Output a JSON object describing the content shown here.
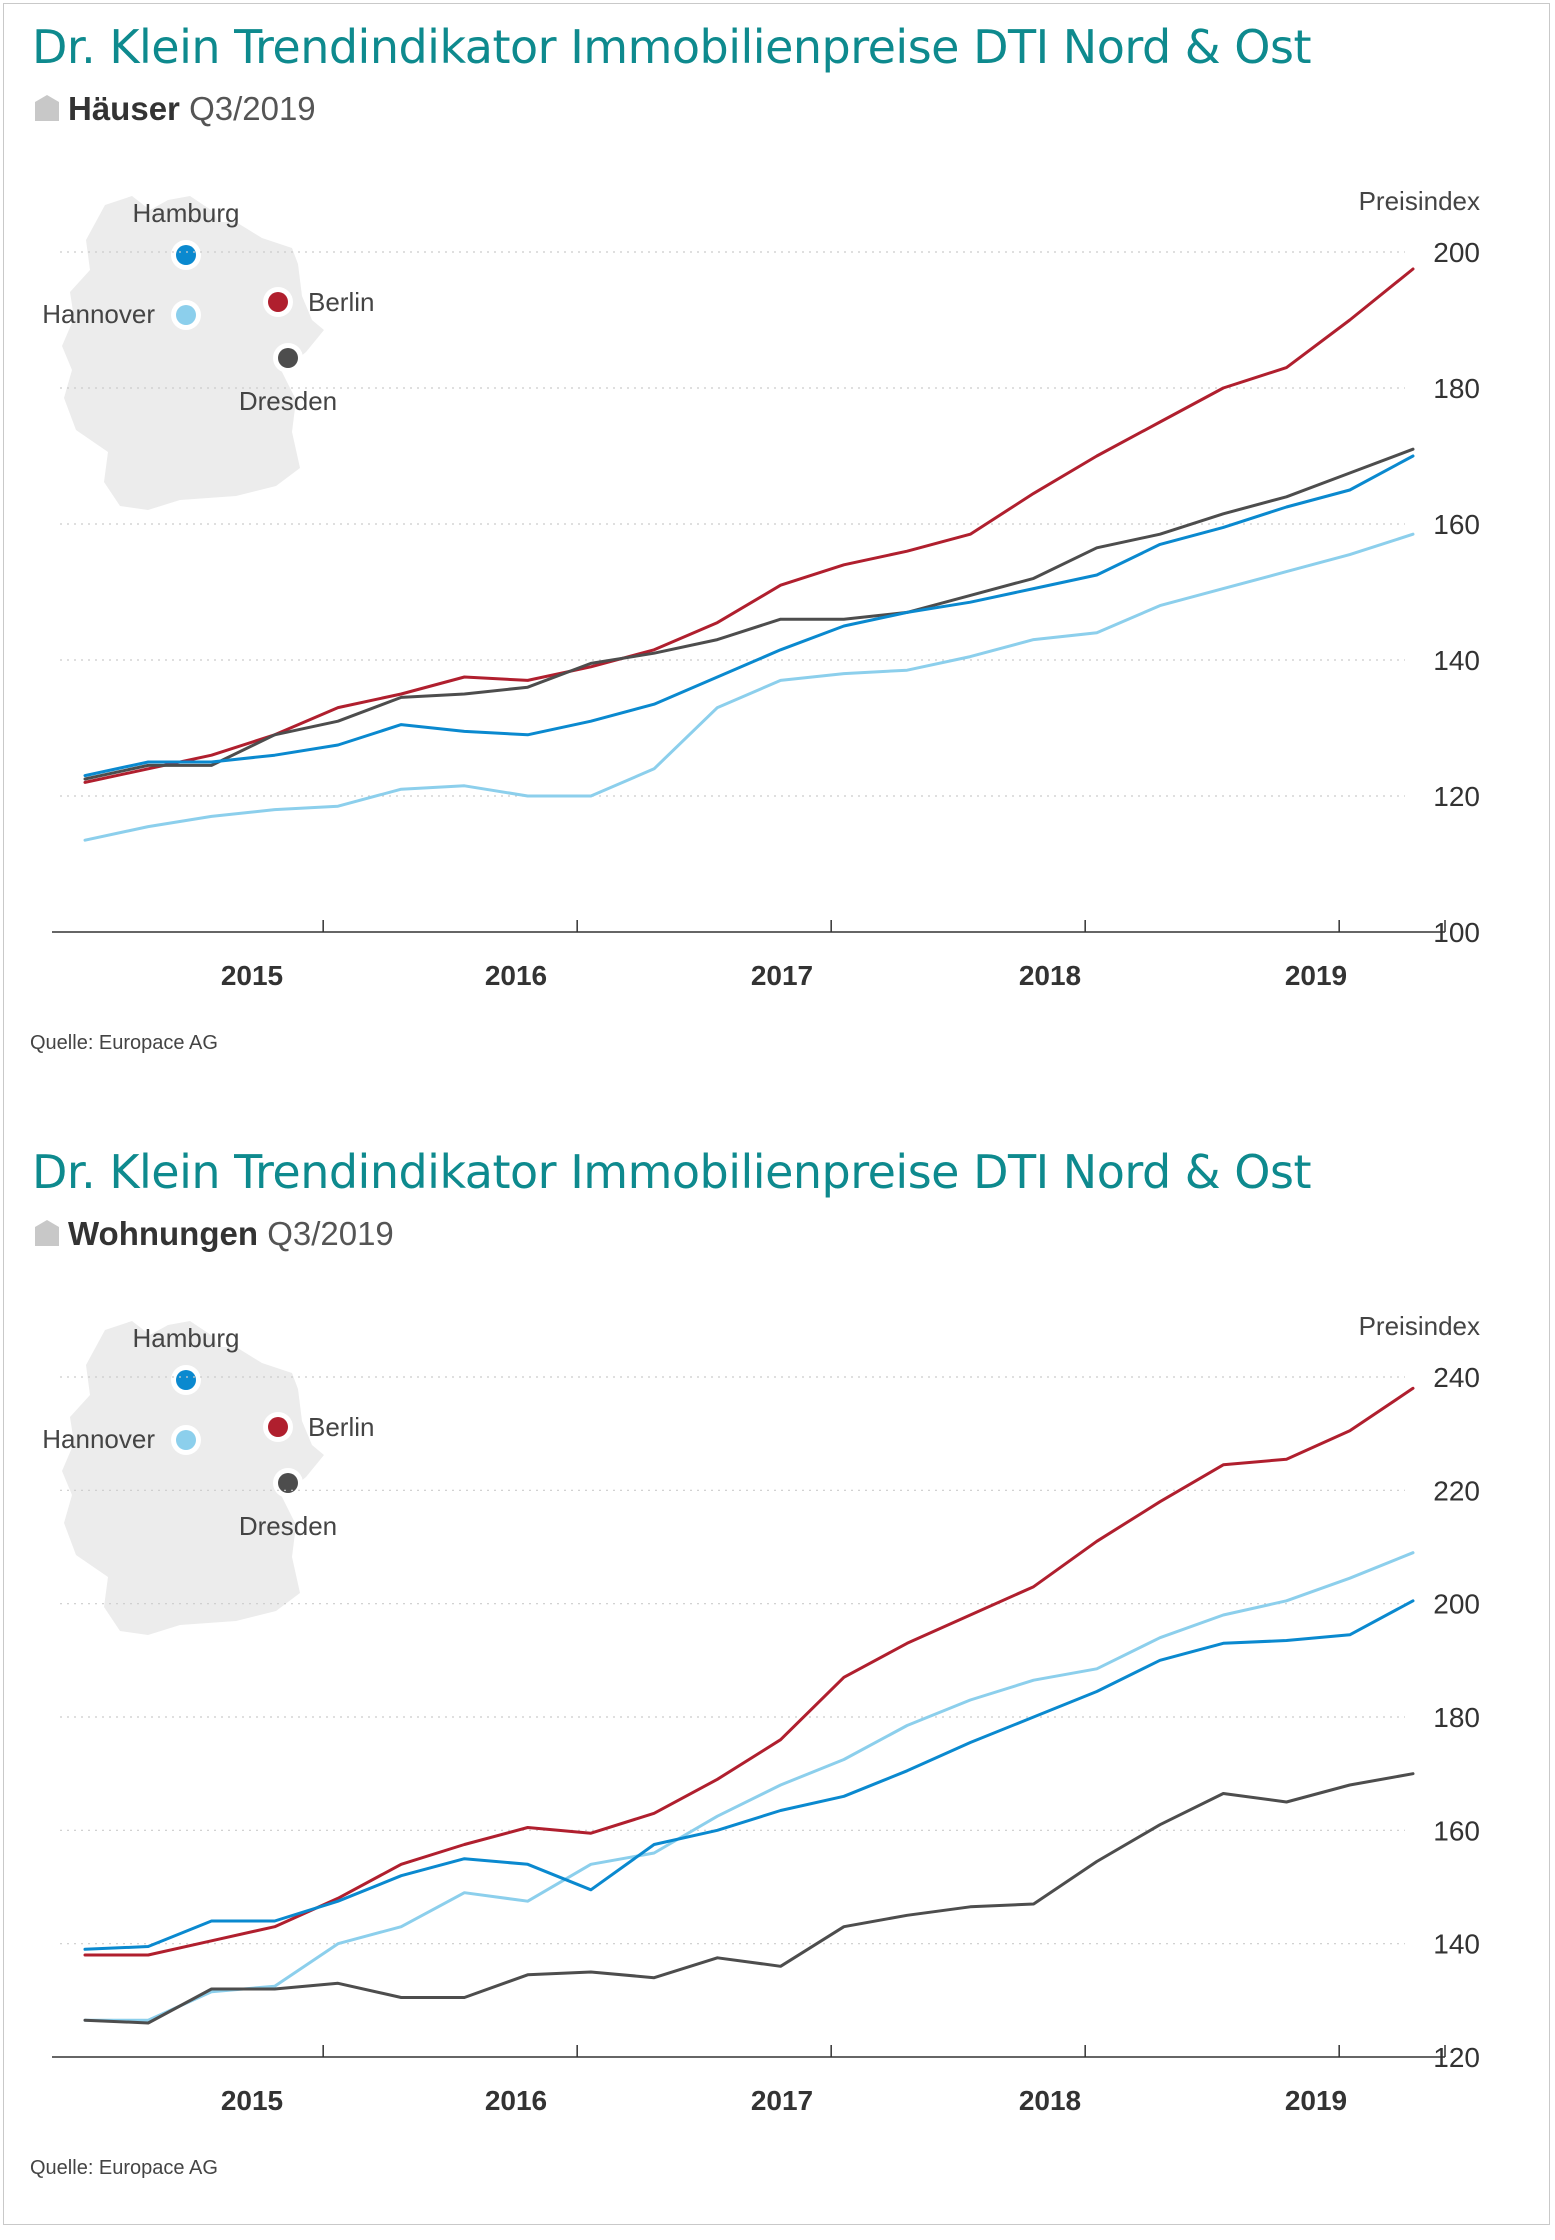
{
  "panels": [
    {
      "title": "Dr. Klein Trendindikator Immobilienpreise DTI Nord & Ost",
      "category": "Häuser",
      "period": "Q3/2019",
      "source": "Quelle: Europace AG",
      "map_labels": [
        "Hamburg",
        "Hannover",
        "Berlin",
        "Dresden"
      ],
      "chart_data": {
        "type": "line",
        "title": "Dr. Klein Trendindikator Immobilienpreise DTI Nord & Ost – Häuser Q3/2019",
        "ylabel": "Preisindex",
        "ylim": [
          100,
          200
        ],
        "yticks": [
          100,
          120,
          140,
          160,
          180,
          200
        ],
        "xticks": [
          "2015",
          "2016",
          "2017",
          "2018",
          "2019"
        ],
        "x_range": [
          "2014-Q2",
          "2019-Q3"
        ],
        "x": [
          "2014-05",
          "2014-08",
          "2014-11",
          "2015-02",
          "2015-05",
          "2015-08",
          "2015-11",
          "2016-02",
          "2016-05",
          "2016-08",
          "2016-11",
          "2017-02",
          "2017-05",
          "2017-08",
          "2017-11",
          "2018-02",
          "2018-05",
          "2018-08",
          "2018-11",
          "2019-02",
          "2019-05",
          "2019-08"
        ],
        "grid": "horizontal dotted",
        "series": [
          {
            "name": "Berlin",
            "color": "#b01f2e",
            "values": [
              122,
              124,
              126,
              129,
              133,
              135,
              137.5,
              137,
              139,
              141.5,
              145.5,
              151,
              154,
              156,
              158.5,
              164.5,
              170,
              175,
              180,
              183,
              190,
              197.5
            ]
          },
          {
            "name": "Dresden",
            "color": "#4d4d4d",
            "values": [
              122.5,
              124.5,
              124.5,
              129,
              131,
              134.5,
              135,
              136,
              139.5,
              141,
              143,
              146,
              146,
              147,
              149.5,
              152,
              156.5,
              158.5,
              161.5,
              164,
              167.5,
              171
            ]
          },
          {
            "name": "Hamburg",
            "color": "#0a89cf",
            "values": [
              123,
              125,
              125,
              126,
              127.5,
              130.5,
              129.5,
              129,
              131,
              133.5,
              137.5,
              141.5,
              145,
              147,
              148.5,
              150.5,
              152.5,
              157,
              159.5,
              162.5,
              165,
              170
            ]
          },
          {
            "name": "Hannover",
            "color": "#8ccfec",
            "values": [
              113.5,
              115.5,
              117,
              118,
              118.5,
              121,
              121.5,
              120,
              120,
              124,
              133,
              137,
              138,
              138.5,
              140.5,
              143,
              144,
              148,
              150.5,
              153,
              155.5,
              158.5
            ]
          }
        ]
      }
    },
    {
      "title": "Dr. Klein Trendindikator Immobilienpreise DTI Nord & Ost",
      "category": "Wohnungen",
      "period": "Q3/2019",
      "source": "Quelle: Europace AG",
      "map_labels": [
        "Hamburg",
        "Hannover",
        "Berlin",
        "Dresden"
      ],
      "chart_data": {
        "type": "line",
        "title": "Dr. Klein Trendindikator Immobilienpreise DTI Nord & Ost – Wohnungen Q3/2019",
        "ylabel": "Preisindex",
        "ylim": [
          120,
          240
        ],
        "yticks": [
          120,
          140,
          160,
          180,
          200,
          220,
          240
        ],
        "xticks": [
          "2015",
          "2016",
          "2017",
          "2018",
          "2019"
        ],
        "x_range": [
          "2014-Q2",
          "2019-Q3"
        ],
        "x": [
          "2014-05",
          "2014-08",
          "2014-11",
          "2015-02",
          "2015-05",
          "2015-08",
          "2015-11",
          "2016-02",
          "2016-05",
          "2016-08",
          "2016-11",
          "2017-02",
          "2017-05",
          "2017-08",
          "2017-11",
          "2018-02",
          "2018-05",
          "2018-08",
          "2018-11",
          "2019-02",
          "2019-05",
          "2019-08"
        ],
        "grid": "horizontal dotted",
        "series": [
          {
            "name": "Berlin",
            "color": "#b01f2e",
            "values": [
              138,
              138,
              140.5,
              143,
              148,
              154,
              157.5,
              160.5,
              159.5,
              163,
              169,
              176,
              187,
              193,
              198,
              203,
              211,
              218,
              224.5,
              225.5,
              230.5,
              238
            ]
          },
          {
            "name": "Hannover",
            "color": "#8ccfec",
            "values": [
              126.5,
              126.5,
              131.5,
              132.5,
              140,
              143,
              149,
              147.5,
              154,
              156,
              162.5,
              168,
              172.5,
              178.5,
              183,
              186.5,
              188.5,
              194,
              198,
              200.5,
              204.5,
              209
            ]
          },
          {
            "name": "Hamburg",
            "color": "#0a89cf",
            "values": [
              139,
              139.5,
              144,
              144,
              147.5,
              152,
              155,
              154,
              149.5,
              157.5,
              160,
              163.5,
              166,
              170.5,
              175.5,
              180,
              184.5,
              190,
              193,
              193.5,
              194.5,
              200.5
            ]
          },
          {
            "name": "Dresden",
            "color": "#4d4d4d",
            "values": [
              126.5,
              126,
              132,
              132,
              133,
              130.5,
              130.5,
              134.5,
              135,
              134,
              137.5,
              136,
              143,
              145,
              146.5,
              147,
              154.5,
              161,
              166.5,
              165,
              168,
              170
            ]
          }
        ]
      }
    }
  ],
  "colors": {
    "title": "#0e8a8e",
    "grid": "#cccccc",
    "axis": "#333333",
    "map_fill": "#ececec"
  },
  "icons": {
    "category_marker": "house-icon",
    "map": "germany-map-icon"
  }
}
